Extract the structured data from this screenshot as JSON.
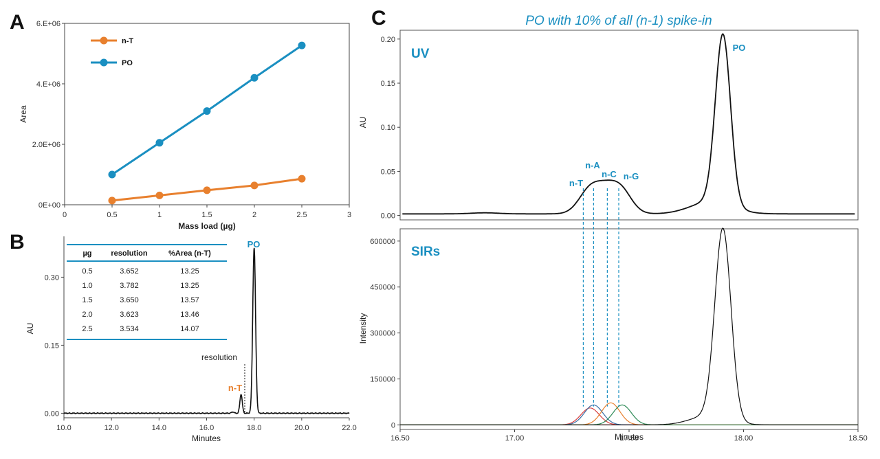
{
  "colors": {
    "orange": "#e8802e",
    "blue": "#1a8fc1",
    "black": "#111111",
    "red": "#d84040",
    "green": "#2e8b57",
    "navy": "#3a6ea5"
  },
  "panel_labels": [
    "A",
    "B",
    "C"
  ],
  "chart_data": [
    {
      "id": "A",
      "type": "line",
      "xlabel": "Mass load (µg)",
      "ylabel": "Area",
      "xlim": [
        0,
        3
      ],
      "ylim": [
        0,
        6000000
      ],
      "x_ticks": [
        "0",
        "0.5",
        "1",
        "1.5",
        "2",
        "2.5",
        "3"
      ],
      "y_ticks": [
        "0E+00",
        "2.0E+06",
        "4.E+06",
        "6.E+06"
      ],
      "x": [
        0.5,
        1.0,
        1.5,
        2.0,
        2.5
      ],
      "series": [
        {
          "name": "n-T",
          "color": "#e8802e",
          "values": [
            140000,
            310000,
            480000,
            640000,
            860000
          ]
        },
        {
          "name": "PO",
          "color": "#1a8fc1",
          "values": [
            1000000,
            2050000,
            3100000,
            4200000,
            5270000
          ]
        }
      ],
      "legend": "top-left"
    },
    {
      "id": "B",
      "type": "line",
      "xlabel": "Minutes",
      "ylabel": "AU",
      "xlim": [
        10.0,
        22.0
      ],
      "ylim": [
        -0.01,
        0.39
      ],
      "x_ticks": [
        "10.0",
        "12.0",
        "14.0",
        "16.0",
        "18.0",
        "20.0",
        "22.0"
      ],
      "y_ticks": [
        "0.00",
        "0.15",
        "0.30"
      ],
      "peaks": [
        {
          "label": "n-T",
          "rt": 17.45,
          "height": 0.042,
          "color": "#e8802e"
        },
        {
          "label": "PO",
          "rt": 18.0,
          "height": 0.365,
          "color": "#1a8fc1"
        }
      ],
      "annotation": "resolution",
      "table": {
        "headers": [
          "µg",
          "resolution",
          "%Area (n-T)"
        ],
        "rows": [
          [
            "0.5",
            "3.652",
            "13.25"
          ],
          [
            "1.0",
            "3.782",
            "13.25"
          ],
          [
            "1.5",
            "3.650",
            "13.57"
          ],
          [
            "2.0",
            "3.623",
            "13.46"
          ],
          [
            "2.5",
            "3.534",
            "14.07"
          ]
        ]
      }
    },
    {
      "id": "C",
      "title": "PO with 10% of all (n-1) spike-in",
      "type": "line",
      "xlabel": "Minutes",
      "xlim": [
        16.5,
        18.5
      ],
      "x_ticks": [
        "16.50",
        "17.00",
        "17.50",
        "18.00",
        "18.50"
      ],
      "uv": {
        "label": "UV",
        "ylabel": "AU",
        "ylim": [
          -0.005,
          0.21
        ],
        "y_ticks": [
          "0.00",
          "0.05",
          "0.10",
          "0.15",
          "0.20"
        ],
        "peaks": [
          {
            "label": "n-T",
            "rt": 17.3
          },
          {
            "label": "n-A",
            "rt": 17.345
          },
          {
            "label": "n-C",
            "rt": 17.405
          },
          {
            "label": "n-G",
            "rt": 17.455
          },
          {
            "label": "PO",
            "rt": 17.91,
            "height": 0.197
          }
        ]
      },
      "sirs": {
        "label": "SIRs",
        "ylabel": "Intensity",
        "ylim": [
          -15000,
          640000
        ],
        "y_ticks": [
          "0",
          "150000",
          "300000",
          "450000",
          "600000"
        ],
        "traces": [
          {
            "name": "n-T",
            "rt": 17.33,
            "height": 55000,
            "color": "#d84040"
          },
          {
            "name": "n-A",
            "rt": 17.345,
            "height": 65000,
            "color": "#3a6ea5"
          },
          {
            "name": "n-C",
            "rt": 17.42,
            "height": 72000,
            "color": "#e8802e"
          },
          {
            "name": "n-G",
            "rt": 17.47,
            "height": 65000,
            "color": "#2e8b57"
          },
          {
            "name": "PO",
            "rt": 17.91,
            "height": 620000,
            "color": "#111111"
          }
        ]
      }
    }
  ]
}
